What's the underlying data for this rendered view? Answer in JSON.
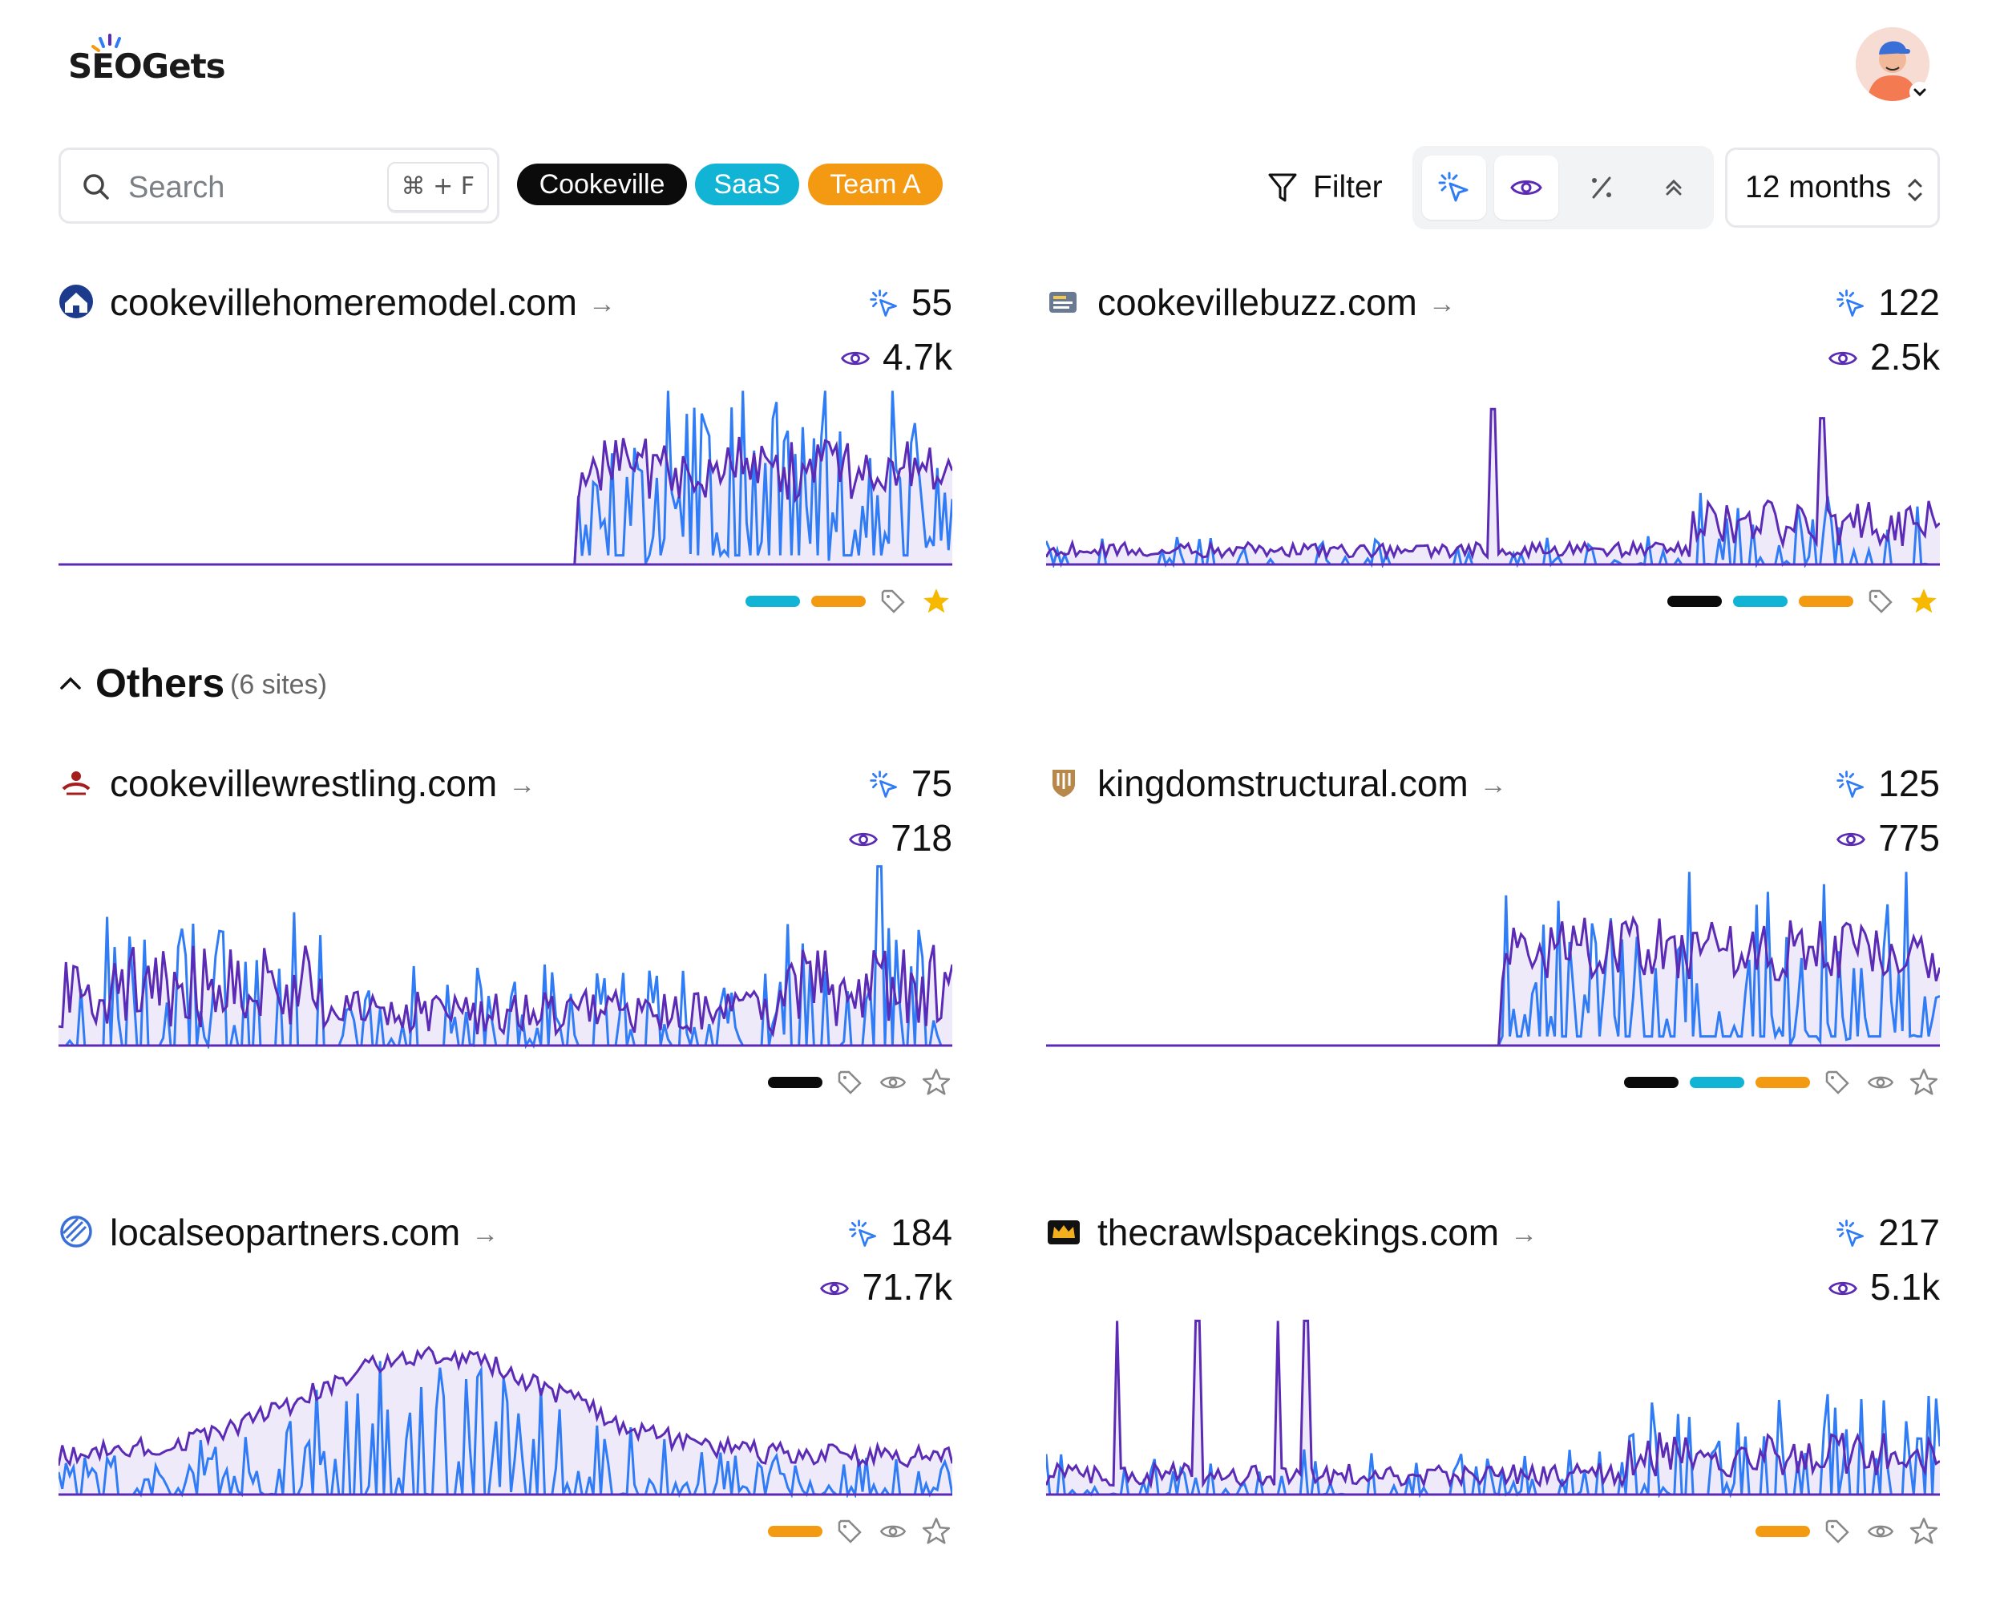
{
  "brand": {
    "logo_text": "SEOGets"
  },
  "search": {
    "placeholder": "Search",
    "shortcut": "⌘ + F"
  },
  "chips": [
    {
      "label": "Cookeville",
      "color": "#0b0b0b"
    },
    {
      "label": "SaaS",
      "color": "#12b4d6"
    },
    {
      "label": "Team A",
      "color": "#f49a12"
    }
  ],
  "toolbar": {
    "filter_label": "Filter",
    "period_label": "12 months"
  },
  "colors": {
    "clicks": "#2f7cf6",
    "impressions": "#5b2bb5",
    "tag_black": "#0b0b0b",
    "tag_cyan": "#12b4d6",
    "tag_orange": "#f49a12",
    "star": "#f6b800"
  },
  "favorites": [
    {
      "name": "cookevillehomeremodel.com",
      "icon": "house-icon",
      "clicks": "55",
      "impressions": "4.7k",
      "tags": [
        "cyan",
        "orange"
      ],
      "starred": true
    },
    {
      "name": "cookevillebuzz.com",
      "icon": "news-icon",
      "clicks": "122",
      "impressions": "2.5k",
      "tags": [
        "black",
        "cyan",
        "orange"
      ],
      "starred": true
    }
  ],
  "others": {
    "title": "Others",
    "count_label": "(6 sites)"
  },
  "other_sites": [
    {
      "name": "cookevillewrestling.com",
      "icon": "wrestling-icon",
      "clicks": "75",
      "impressions": "718",
      "tags": [
        "black"
      ],
      "starred": false
    },
    {
      "name": "kingdomstructural.com",
      "icon": "shield-icon",
      "clicks": "125",
      "impressions": "775",
      "tags": [
        "black",
        "cyan",
        "orange"
      ],
      "starred": false
    },
    {
      "name": "localseopartners.com",
      "icon": "striped-circle-icon",
      "clicks": "184",
      "impressions": "71.7k",
      "tags": [
        "orange"
      ],
      "starred": false
    },
    {
      "name": "thecrawlspacekings.com",
      "icon": "crown-icon",
      "clicks": "217",
      "impressions": "5.1k",
      "tags": [
        "orange"
      ],
      "starred": false
    }
  ],
  "chart_data": [
    {
      "type": "line",
      "site": "cookevillehomeremodel.com",
      "series": [
        {
          "name": "clicks"
        },
        {
          "name": "impressions"
        }
      ],
      "pattern": "flat-then-active",
      "active_from_fraction": 0.58
    },
    {
      "type": "line",
      "site": "cookevillebuzz.com",
      "series": [
        {
          "name": "clicks"
        },
        {
          "name": "impressions"
        }
      ],
      "pattern": "low-with-spikes"
    },
    {
      "type": "line",
      "site": "cookevillewrestling.com",
      "series": [
        {
          "name": "clicks"
        },
        {
          "name": "impressions"
        }
      ],
      "pattern": "noisy"
    },
    {
      "type": "line",
      "site": "kingdomstructural.com",
      "series": [
        {
          "name": "clicks"
        },
        {
          "name": "impressions"
        }
      ],
      "pattern": "flat-then-active",
      "active_from_fraction": 0.51
    },
    {
      "type": "line",
      "site": "localseopartners.com",
      "series": [
        {
          "name": "clicks"
        },
        {
          "name": "impressions"
        }
      ],
      "pattern": "hump"
    },
    {
      "type": "line",
      "site": "thecrawlspacekings.com",
      "series": [
        {
          "name": "clicks"
        },
        {
          "name": "impressions"
        }
      ],
      "pattern": "sparse-spikes"
    }
  ]
}
